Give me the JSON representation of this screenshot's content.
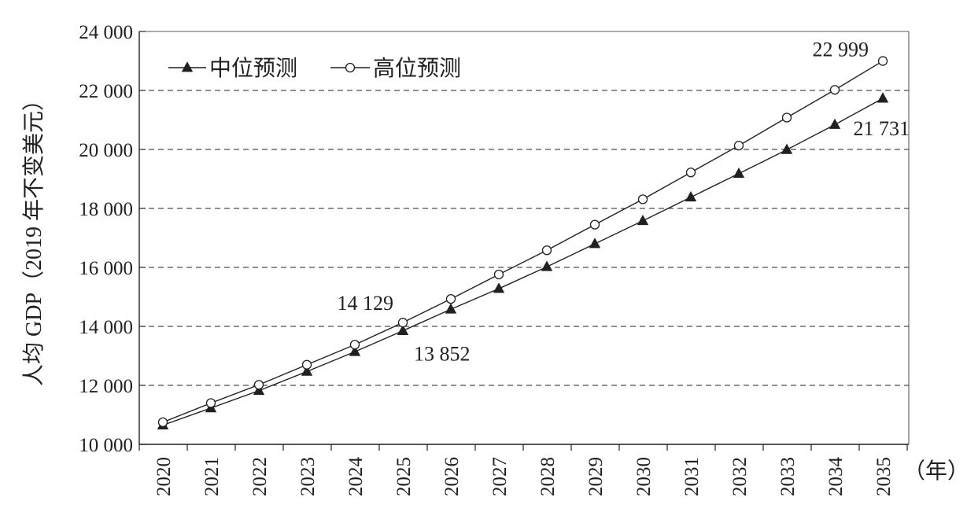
{
  "chart_data": {
    "type": "line",
    "xlabel": "（年）",
    "ylabel": "人均 GDP（2019 年不变美元）",
    "x": [
      "2020",
      "2021",
      "2022",
      "2023",
      "2024",
      "2025",
      "2026",
      "2027",
      "2028",
      "2029",
      "2030",
      "2031",
      "2032",
      "2033",
      "2034",
      "2035"
    ],
    "ylim": [
      10000,
      24000
    ],
    "yticks": [
      10000,
      12000,
      14000,
      16000,
      18000,
      20000,
      22000,
      24000
    ],
    "ytick_labels": [
      "10 000",
      "12 000",
      "14 000",
      "16 000",
      "18 000",
      "20 000",
      "22 000",
      "24 000"
    ],
    "grid": "horizontal dashed",
    "legend_position": "top-left",
    "series": [
      {
        "name": "中位预测",
        "marker": "filled-triangle",
        "values": [
          10650,
          11230,
          11820,
          12470,
          13140,
          13852,
          14580,
          15280,
          16020,
          16800,
          17580,
          18380,
          19180,
          19990,
          20840,
          21731
        ]
      },
      {
        "name": "高位预测",
        "marker": "open-circle",
        "values": [
          10750,
          11400,
          12020,
          12700,
          13380,
          14129,
          14930,
          15760,
          16580,
          17450,
          18310,
          19220,
          20130,
          21080,
          22020,
          22999
        ]
      }
    ],
    "annotations": [
      {
        "text": "14 129",
        "series": 1,
        "index": 5,
        "pos": "above-left"
      },
      {
        "text": "13 852",
        "series": 0,
        "index": 5,
        "pos": "below-right"
      },
      {
        "text": "22 999",
        "series": 1,
        "index": 15,
        "pos": "above-left"
      },
      {
        "text": "21 731",
        "series": 0,
        "index": 15,
        "pos": "below-left"
      }
    ]
  }
}
